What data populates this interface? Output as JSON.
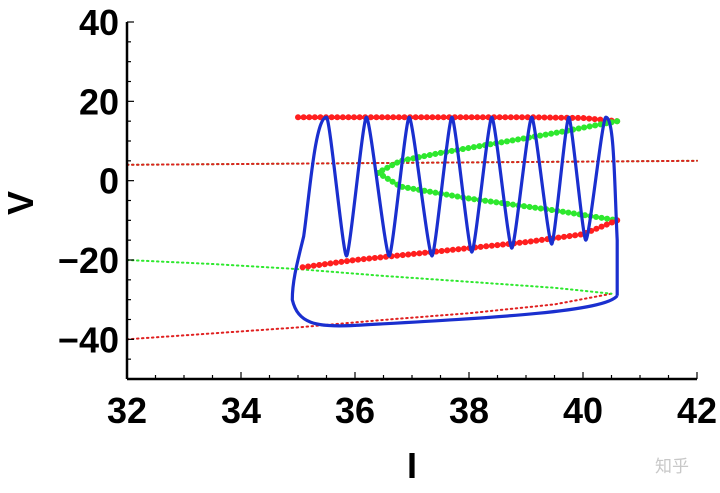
{
  "chart_data": {
    "type": "line",
    "title": "",
    "xlabel": "I",
    "ylabel": "V",
    "xlim": [
      32,
      42
    ],
    "ylim": [
      -50,
      40
    ],
    "xticks": [
      32,
      34,
      36,
      38,
      40,
      42
    ],
    "yticks": [
      -40,
      -20,
      0,
      20,
      40
    ],
    "xtick_labels": [
      "32",
      "34",
      "36",
      "38",
      "40",
      "42"
    ],
    "ytick_labels": [
      "−40",
      "−20",
      "0",
      "20",
      "40"
    ],
    "grid": false,
    "legend": "none",
    "colors": {
      "stable": "#ff1f1f",
      "unstable": "#2ee82e",
      "trajectory": "#1a2fcf",
      "axis": "#000000"
    },
    "fixed_point_branches": [
      {
        "stability": "stable",
        "style": "dotted",
        "color": "#e02020",
        "x": [
          32.0,
          33.5,
          35.0,
          36.5,
          38.0,
          39.5,
          40.5
        ],
        "y": [
          -40.0,
          -38.5,
          -37.0,
          -35.1,
          -33.4,
          -31.2,
          -28.5
        ]
      },
      {
        "stability": "unstable",
        "style": "dotted",
        "color": "#2ee82e",
        "x": [
          32.0,
          33.5,
          35.0,
          36.5,
          38.0,
          39.5,
          40.5
        ],
        "y": [
          -20.0,
          -21.0,
          -22.3,
          -24.0,
          -25.5,
          -27.0,
          -28.5
        ]
      },
      {
        "stability": "unstable",
        "style": "dotted",
        "color": "#2ee82e",
        "x": [
          32.0,
          34.0,
          36.0,
          38.0,
          40.0,
          42.0
        ],
        "y": [
          4.0,
          4.2,
          4.4,
          4.6,
          4.8,
          5.0
        ]
      },
      {
        "stability": "stable",
        "style": "dotted",
        "color": "#e02020",
        "x": [
          32.0,
          34.0,
          36.0,
          38.0,
          40.0,
          42.0
        ],
        "y": [
          4.0,
          4.2,
          4.4,
          4.6,
          4.8,
          5.0
        ]
      }
    ],
    "slow_manifold": [
      {
        "stability": "stable",
        "style": "thick",
        "color": "#ff1f1f",
        "x": [
          35.0,
          36.0,
          37.0,
          38.0,
          39.0,
          40.0,
          40.6
        ],
        "y": [
          16.0,
          16.0,
          16.0,
          16.0,
          16.0,
          15.8,
          15.0
        ]
      },
      {
        "stability": "unstable",
        "style": "thick",
        "color": "#2ee82e",
        "x": [
          40.6,
          39.5,
          38.5,
          37.5,
          36.8,
          36.4,
          36.8,
          38.0,
          39.5,
          40.6
        ],
        "y": [
          15.0,
          12.0,
          9.5,
          7.0,
          5.0,
          2.0,
          -1.5,
          -4.5,
          -7.5,
          -10.0
        ]
      },
      {
        "stability": "stable",
        "style": "thick",
        "color": "#ff1f1f",
        "x": [
          40.6,
          40.0,
          39.0,
          38.0,
          37.0,
          36.0,
          35.0
        ],
        "y": [
          -10.0,
          -13.5,
          -15.5,
          -17.0,
          -18.5,
          -20.0,
          -22.0
        ]
      }
    ],
    "trajectory": {
      "color": "#1a2fcf",
      "spike_peaks_I": [
        35.5,
        36.2,
        36.95,
        37.7,
        38.4,
        39.1,
        39.75,
        40.4
      ],
      "spike_peak_V": 16,
      "spike_trough_I": [
        35.85,
        36.6,
        37.35,
        38.05,
        38.75,
        39.45,
        40.05
      ],
      "spike_trough_V": [
        -19,
        -19,
        -19,
        -18,
        -17,
        -16,
        -15
      ],
      "quiescent_lower_V": [
        -36.5,
        -29.5
      ]
    }
  },
  "watermark": "知乎"
}
